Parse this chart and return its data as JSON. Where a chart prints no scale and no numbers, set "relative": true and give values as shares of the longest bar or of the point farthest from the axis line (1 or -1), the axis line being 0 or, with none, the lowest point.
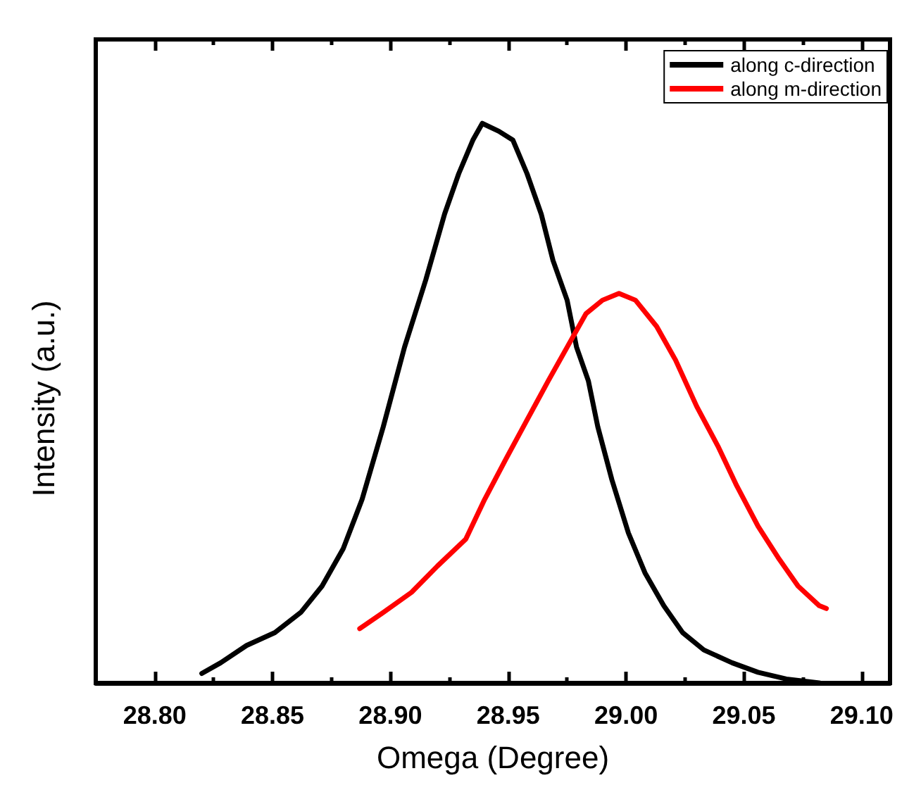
{
  "chart_data": {
    "type": "line",
    "xlabel": "Omega (Degree)",
    "ylabel": "Intensity (a.u.)",
    "relative": true,
    "legend": "top right",
    "grid": false,
    "marker": "none",
    "line_style": "solid",
    "xlim": [
      28.775,
      29.112
    ],
    "xticks": [
      {
        "value": 28.8,
        "label": "28.80"
      },
      {
        "value": 28.85,
        "label": "28.85"
      },
      {
        "value": 28.9,
        "label": "28.90"
      },
      {
        "value": 28.95,
        "label": "28.95"
      },
      {
        "value": 29.0,
        "label": "29.00"
      },
      {
        "value": 29.05,
        "label": "29.05"
      },
      {
        "value": 29.1,
        "label": "29.10"
      }
    ],
    "series": [
      {
        "name": "along c-direction",
        "color": "#000000",
        "x": [
          28.82,
          28.828,
          28.839,
          28.851,
          28.862,
          28.871,
          28.88,
          28.888,
          28.897,
          28.906,
          28.915,
          28.923,
          28.929,
          28.935,
          28.939,
          28.946,
          28.952,
          28.958,
          28.964,
          28.969,
          28.975,
          28.979,
          28.984,
          28.988,
          28.994,
          29.001,
          29.008,
          29.016,
          29.024,
          29.033,
          29.045,
          29.056,
          29.068,
          29.082
        ],
        "values": [
          0.017,
          0.036,
          0.067,
          0.09,
          0.126,
          0.173,
          0.24,
          0.328,
          0.458,
          0.6,
          0.72,
          0.838,
          0.91,
          0.97,
          1.0,
          0.986,
          0.97,
          0.91,
          0.838,
          0.755,
          0.684,
          0.6,
          0.54,
          0.458,
          0.363,
          0.268,
          0.197,
          0.138,
          0.09,
          0.059,
          0.036,
          0.019,
          0.007,
          0.0
        ]
      },
      {
        "name": "along m-direction",
        "color": "#ff0000",
        "x": [
          28.887,
          28.897,
          28.909,
          28.92,
          28.932,
          28.94,
          28.949,
          28.958,
          28.967,
          28.975,
          28.983,
          28.99,
          28.997,
          29.004,
          29.013,
          29.021,
          29.03,
          29.039,
          29.047,
          29.056,
          29.065,
          29.073,
          29.082,
          29.085
        ],
        "values": [
          0.097,
          0.126,
          0.162,
          0.209,
          0.257,
          0.328,
          0.4,
          0.47,
          0.54,
          0.6,
          0.66,
          0.684,
          0.696,
          0.684,
          0.637,
          0.577,
          0.494,
          0.423,
          0.352,
          0.28,
          0.221,
          0.173,
          0.138,
          0.133
        ]
      }
    ]
  }
}
